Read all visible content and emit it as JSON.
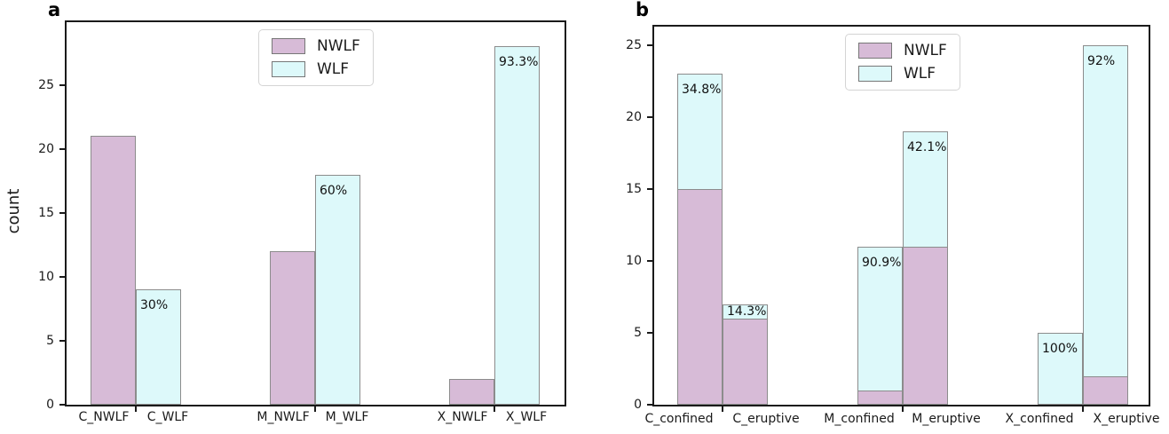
{
  "figure": {
    "background": "#ffffff"
  },
  "colors": {
    "nwlf": "#d7bbd7",
    "wlf": "#ddf9fa",
    "bar_edge": "#8c8c8c",
    "axis": "#1a1a1a",
    "label_text": "#111111"
  },
  "chart_data": [
    {
      "type": "bar",
      "panel_letter": "a",
      "title": "",
      "xlabel": "",
      "ylabel": "count",
      "categories": [
        "C_NWLF",
        "C_WLF",
        "M_NWLF",
        "M_WLF",
        "X_NWLF",
        "X_WLF"
      ],
      "series_per_bar": [
        "NWLF",
        "WLF",
        "NWLF",
        "WLF",
        "NWLF",
        "WLF"
      ],
      "values": [
        21,
        9,
        12,
        18,
        2,
        28
      ],
      "bar_labels": [
        "",
        "30%",
        "",
        "60%",
        "",
        "93.3%"
      ],
      "yticks": [
        0,
        5,
        10,
        15,
        20,
        25
      ],
      "ylim": [
        0,
        29.9
      ],
      "grid": false,
      "legend_position": "upper center",
      "legend": [
        {
          "name": "NWLF",
          "color_key": "nwlf"
        },
        {
          "name": "WLF",
          "color_key": "wlf"
        }
      ]
    },
    {
      "type": "bar-stacked",
      "panel_letter": "b",
      "title": "",
      "xlabel": "",
      "ylabel": "",
      "categories": [
        "C_confined",
        "C_eruptive",
        "M_confined",
        "M_eruptive",
        "X_confined",
        "X_eruptive"
      ],
      "series": [
        {
          "name": "NWLF",
          "color_key": "nwlf",
          "values": [
            15,
            6,
            1,
            11,
            0,
            2
          ]
        },
        {
          "name": "WLF",
          "color_key": "wlf",
          "values": [
            8,
            1,
            10,
            8,
            5,
            23
          ]
        }
      ],
      "totals": [
        23,
        7,
        11,
        19,
        5,
        25
      ],
      "bar_labels": [
        "34.8%",
        "14.3%",
        "90.9%",
        "42.1%",
        "100%",
        "92%"
      ],
      "yticks": [
        0,
        5,
        10,
        15,
        20,
        25
      ],
      "ylim": [
        0,
        26.3
      ],
      "grid": false,
      "legend_position": "upper center",
      "legend": [
        {
          "name": "NWLF",
          "color_key": "nwlf"
        },
        {
          "name": "WLF",
          "color_key": "wlf"
        }
      ]
    }
  ]
}
